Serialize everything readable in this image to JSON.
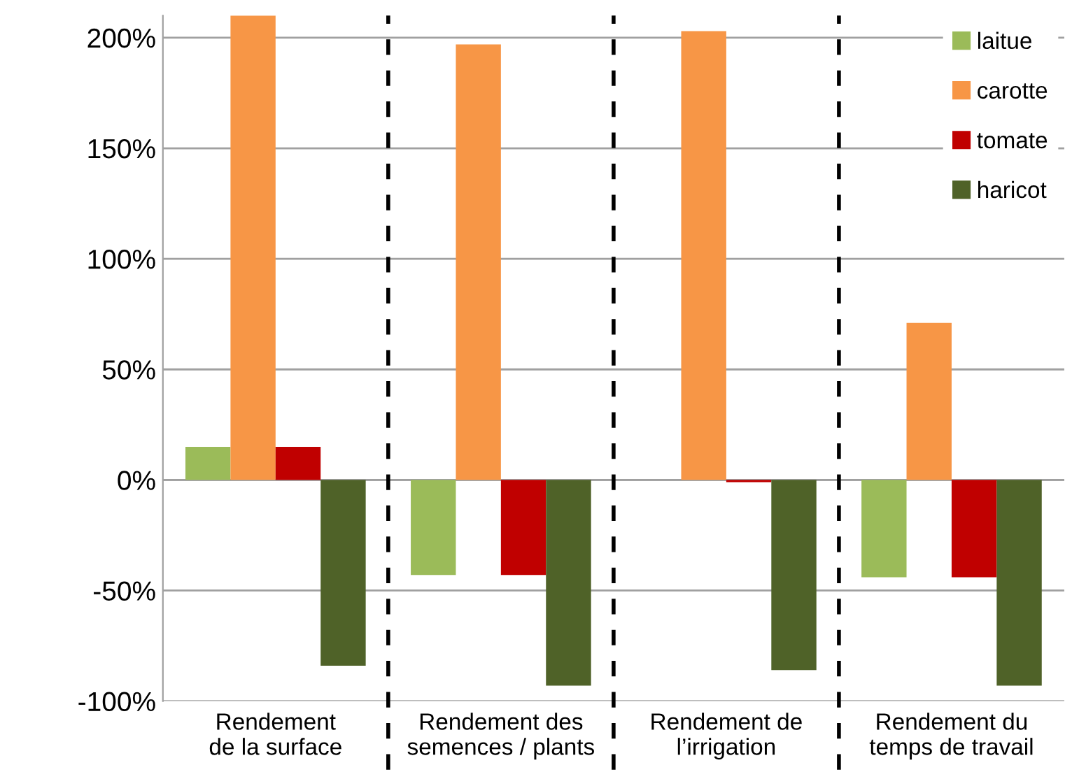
{
  "chart_data": {
    "type": "bar",
    "categories": [
      "Rendement\nde la surface",
      "Rendement des\nsemences / plants",
      "Rendement de\nl’irrigation",
      "Rendement du\ntemps de travail"
    ],
    "series": [
      {
        "name": "laitue",
        "color": "#9bbb59",
        "values": [
          15,
          -43,
          0,
          -44
        ]
      },
      {
        "name": "carotte",
        "color": "#f79646",
        "values": [
          210,
          197,
          203,
          71
        ]
      },
      {
        "name": "tomate",
        "color": "#c00000",
        "values": [
          15,
          -43,
          -1,
          -44
        ]
      },
      {
        "name": "haricot",
        "color": "#4f6228",
        "values": [
          -84,
          -93,
          -86,
          -93
        ]
      }
    ],
    "ylim": [
      -100,
      210
    ],
    "yticks": [
      {
        "value": -100,
        "label": "-100%"
      },
      {
        "value": -50,
        "label": "-50%"
      },
      {
        "value": 0,
        "label": "0%"
      },
      {
        "value": 50,
        "label": "50%"
      },
      {
        "value": 100,
        "label": "100%"
      },
      {
        "value": 150,
        "label": "150%"
      },
      {
        "value": 200,
        "label": "200%"
      }
    ],
    "grid": "y",
    "legend": "top right"
  }
}
